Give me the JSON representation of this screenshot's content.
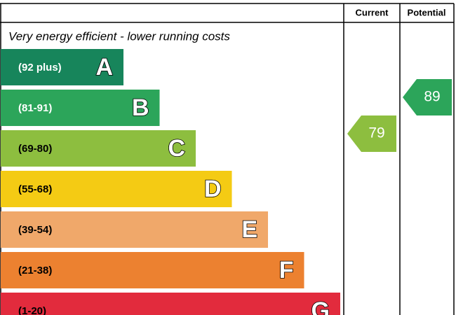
{
  "header": {
    "current": "Current",
    "potential": "Potential"
  },
  "top_text": "Very energy efficient - lower running costs",
  "bands": [
    {
      "range": "(92 plus)",
      "letter": "A",
      "color": "#17855b",
      "text_color": "#ffffff"
    },
    {
      "range": "(81-91)",
      "letter": "B",
      "color": "#2ca55a",
      "text_color": "#ffffff"
    },
    {
      "range": "(69-80)",
      "letter": "C",
      "color": "#8dbe3f",
      "text_color": "#000000"
    },
    {
      "range": "(55-68)",
      "letter": "D",
      "color": "#f4cb14",
      "text_color": "#000000"
    },
    {
      "range": "(39-54)",
      "letter": "E",
      "color": "#f0a86a",
      "text_color": "#000000"
    },
    {
      "range": "(21-38)",
      "letter": "F",
      "color": "#ec8130",
      "text_color": "#000000"
    },
    {
      "range": "(1-20)",
      "letter": "G",
      "color": "#e22b3d",
      "text_color": "#000000"
    }
  ],
  "current": {
    "value": 79,
    "color": "#8dbe3f"
  },
  "potential": {
    "value": 89,
    "color": "#2ca55a"
  }
}
